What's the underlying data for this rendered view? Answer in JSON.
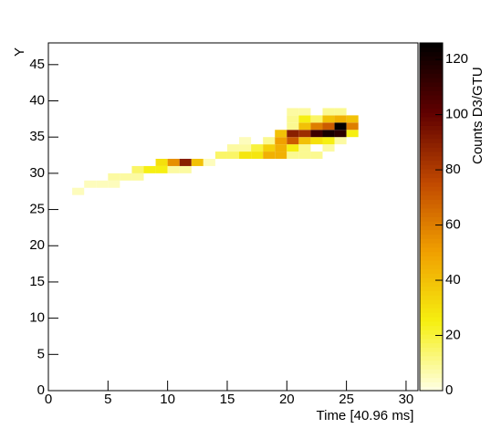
{
  "chart_data": {
    "type": "heatmap",
    "x_label": "Time [40.96 ms]",
    "y_label": "Y",
    "z_label": "Counts D3/GTU",
    "xlim": [
      0,
      31
    ],
    "ylim": [
      0,
      48
    ],
    "zlim": [
      0,
      126
    ],
    "xticks": [
      0,
      5,
      10,
      15,
      20,
      25,
      30
    ],
    "yticks": [
      0,
      5,
      10,
      15,
      20,
      25,
      30,
      35,
      40,
      45
    ],
    "zticks": [
      0,
      20,
      40,
      60,
      80,
      100,
      120
    ],
    "colorscale": [
      [
        0,
        "#ffffe6"
      ],
      [
        0.2,
        "#f6ef10"
      ],
      [
        0.4,
        "#f0a000"
      ],
      [
        0.6,
        "#c04800"
      ],
      [
        0.8,
        "#600000"
      ],
      [
        1,
        "#000000"
      ]
    ],
    "cells": [
      {
        "x": 2,
        "y": 27,
        "value": 5
      },
      {
        "x": 3,
        "y": 28,
        "value": 5
      },
      {
        "x": 4,
        "y": 28,
        "value": 5
      },
      {
        "x": 5,
        "y": 28,
        "value": 5
      },
      {
        "x": 5,
        "y": 29,
        "value": 8
      },
      {
        "x": 6,
        "y": 29,
        "value": 8
      },
      {
        "x": 7,
        "y": 29,
        "value": 8
      },
      {
        "x": 7,
        "y": 30,
        "value": 15
      },
      {
        "x": 8,
        "y": 30,
        "value": 25
      },
      {
        "x": 9,
        "y": 30,
        "value": 25
      },
      {
        "x": 10,
        "y": 30,
        "value": 8
      },
      {
        "x": 11,
        "y": 30,
        "value": 8
      },
      {
        "x": 9,
        "y": 31,
        "value": 30
      },
      {
        "x": 10,
        "y": 31,
        "value": 55
      },
      {
        "x": 11,
        "y": 31,
        "value": 90
      },
      {
        "x": 12,
        "y": 31,
        "value": 40
      },
      {
        "x": 13,
        "y": 31,
        "value": 5
      },
      {
        "x": 14,
        "y": 32,
        "value": 15
      },
      {
        "x": 15,
        "y": 32,
        "value": 15
      },
      {
        "x": 16,
        "y": 32,
        "value": 28
      },
      {
        "x": 17,
        "y": 32,
        "value": 28
      },
      {
        "x": 18,
        "y": 32,
        "value": 45
      },
      {
        "x": 19,
        "y": 32,
        "value": 45
      },
      {
        "x": 20,
        "y": 32,
        "value": 10
      },
      {
        "x": 21,
        "y": 32,
        "value": 10
      },
      {
        "x": 22,
        "y": 32,
        "value": 10
      },
      {
        "x": 15,
        "y": 33,
        "value": 8
      },
      {
        "x": 16,
        "y": 33,
        "value": 8
      },
      {
        "x": 17,
        "y": 33,
        "value": 20
      },
      {
        "x": 18,
        "y": 33,
        "value": 35
      },
      {
        "x": 19,
        "y": 33,
        "value": 45
      },
      {
        "x": 20,
        "y": 33,
        "value": 25
      },
      {
        "x": 21,
        "y": 33,
        "value": 10
      },
      {
        "x": 23,
        "y": 33,
        "value": 8
      },
      {
        "x": 16,
        "y": 34,
        "value": 5
      },
      {
        "x": 18,
        "y": 34,
        "value": 10
      },
      {
        "x": 19,
        "y": 34,
        "value": 50
      },
      {
        "x": 20,
        "y": 34,
        "value": 70
      },
      {
        "x": 21,
        "y": 34,
        "value": 40
      },
      {
        "x": 22,
        "y": 34,
        "value": 30
      },
      {
        "x": 23,
        "y": 34,
        "value": 25
      },
      {
        "x": 24,
        "y": 34,
        "value": 8
      },
      {
        "x": 19,
        "y": 35,
        "value": 40
      },
      {
        "x": 20,
        "y": 35,
        "value": 90
      },
      {
        "x": 21,
        "y": 35,
        "value": 85
      },
      {
        "x": 22,
        "y": 35,
        "value": 110
      },
      {
        "x": 23,
        "y": 35,
        "value": 120
      },
      {
        "x": 24,
        "y": 35,
        "value": 115
      },
      {
        "x": 25,
        "y": 35,
        "value": 25
      },
      {
        "x": 20,
        "y": 36,
        "value": 10
      },
      {
        "x": 21,
        "y": 36,
        "value": 40
      },
      {
        "x": 22,
        "y": 36,
        "value": 60
      },
      {
        "x": 23,
        "y": 36,
        "value": 70
      },
      {
        "x": 24,
        "y": 36,
        "value": 125
      },
      {
        "x": 25,
        "y": 36,
        "value": 60
      },
      {
        "x": 20,
        "y": 37,
        "value": 10
      },
      {
        "x": 21,
        "y": 37,
        "value": 25
      },
      {
        "x": 22,
        "y": 37,
        "value": 15
      },
      {
        "x": 23,
        "y": 37,
        "value": 40
      },
      {
        "x": 24,
        "y": 37,
        "value": 45
      },
      {
        "x": 25,
        "y": 37,
        "value": 40
      },
      {
        "x": 20,
        "y": 38,
        "value": 8
      },
      {
        "x": 21,
        "y": 38,
        "value": 8
      },
      {
        "x": 23,
        "y": 38,
        "value": 10
      },
      {
        "x": 24,
        "y": 38,
        "value": 10
      }
    ]
  }
}
